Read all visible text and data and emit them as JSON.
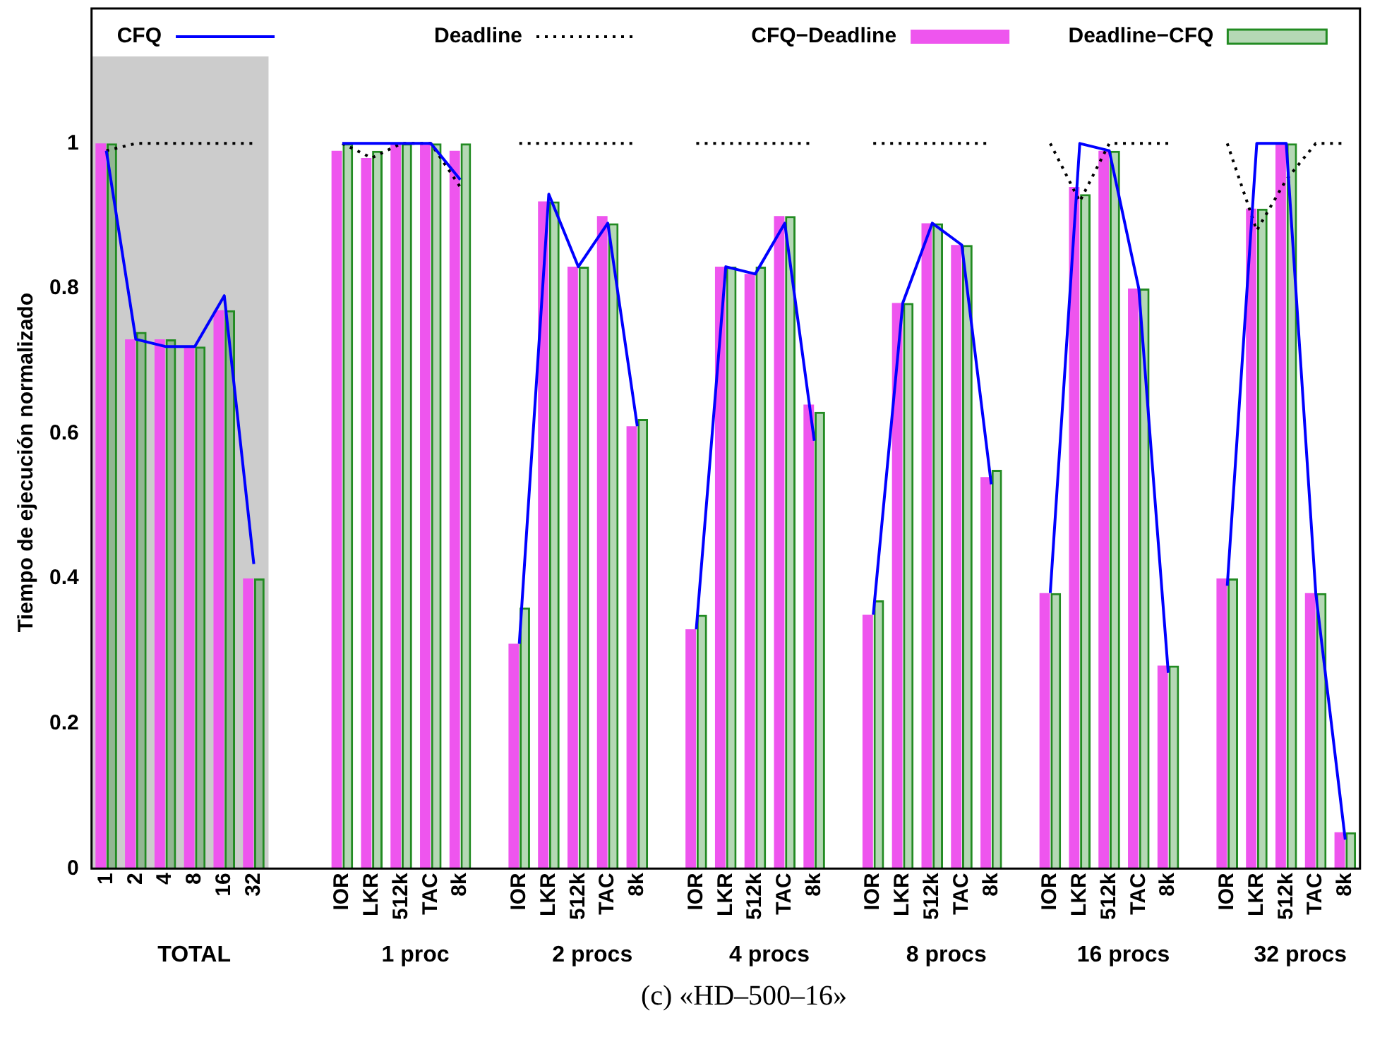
{
  "chart_data": {
    "type": "bar",
    "title": "(c) «HD–500–16»",
    "ylabel": "Tiempo de ejecución normalizado",
    "categories": [
      "1",
      "2",
      "4",
      "8",
      "16",
      "32",
      null,
      null,
      "IOR",
      "LKR",
      "512k",
      "TAC",
      "8k",
      null,
      "IOR",
      "LKR",
      "512k",
      "TAC",
      "8k",
      null,
      "IOR",
      "LKR",
      "512k",
      "TAC",
      "8k",
      null,
      "IOR",
      "LKR",
      "512k",
      "TAC",
      "8k",
      null,
      "IOR",
      "LKR",
      "512k",
      "TAC",
      "8k",
      null,
      "IOR",
      "LKR",
      "512k",
      "TAC",
      "8k"
    ],
    "series": [
      {
        "name": "CFQ",
        "type": "line",
        "color": "#0000ff",
        "line_style": "solid",
        "values": [
          0.99,
          0.73,
          0.72,
          0.72,
          0.79,
          0.42,
          null,
          null,
          1,
          1,
          1,
          1,
          0.95,
          null,
          0.31,
          0.93,
          0.83,
          0.89,
          0.61,
          null,
          0.33,
          0.83,
          0.82,
          0.89,
          0.59,
          null,
          0.35,
          0.78,
          0.89,
          0.86,
          0.53,
          null,
          0.38,
          1,
          0.99,
          0.8,
          0.27,
          null,
          0.39,
          1,
          1,
          0.38,
          0.04
        ]
      },
      {
        "name": "Deadline",
        "type": "line",
        "color": "#000000",
        "line_style": "dotted",
        "values": [
          0.99,
          1,
          1,
          1,
          1,
          1,
          null,
          null,
          1,
          0.98,
          1,
          1,
          0.94,
          null,
          1,
          1,
          1,
          1,
          1,
          null,
          1,
          1,
          1,
          1,
          1,
          null,
          1,
          1,
          1,
          1,
          1,
          null,
          1,
          0.92,
          1,
          1,
          1,
          null,
          1,
          0.88,
          0.95,
          1,
          1
        ]
      },
      {
        "name": "CFQ−Deadline",
        "color": "#ee55ee",
        "values": [
          1,
          0.73,
          0.73,
          0.72,
          0.77,
          0.4,
          null,
          null,
          0.99,
          0.98,
          1,
          1,
          0.99,
          null,
          0.31,
          0.92,
          0.83,
          0.9,
          0.61,
          null,
          0.33,
          0.83,
          0.82,
          0.9,
          0.64,
          null,
          0.35,
          0.78,
          0.89,
          0.86,
          0.54,
          null,
          0.38,
          0.94,
          0.99,
          0.8,
          0.28,
          null,
          0.4,
          0.91,
          1,
          0.38,
          0.05
        ]
      },
      {
        "name": "Deadline−CFQ",
        "color": "#228b22",
        "values": [
          1,
          0.74,
          0.73,
          0.72,
          0.77,
          0.4,
          null,
          null,
          1,
          0.99,
          1,
          1,
          1,
          null,
          0.36,
          0.92,
          0.83,
          0.89,
          0.62,
          null,
          0.35,
          0.83,
          0.83,
          0.9,
          0.63,
          null,
          0.37,
          0.78,
          0.89,
          0.86,
          0.55,
          null,
          0.38,
          0.93,
          0.99,
          0.8,
          0.28,
          null,
          0.4,
          0.91,
          1,
          0.38,
          0.05
        ]
      }
    ],
    "ylim": [
      0,
      1.12
    ],
    "yticks": [
      0,
      0.2,
      0.4,
      0.6,
      0.8,
      1
    ],
    "grid": false,
    "legend": "top",
    "bands": [
      {
        "axis": "x",
        "from": "1",
        "to": "32",
        "color": "#cccccc"
      }
    ],
    "annotations": [
      "TOTAL",
      "1 proc",
      "2 procs",
      "4 procs",
      "8 procs",
      "16 procs",
      "32 procs"
    ]
  }
}
